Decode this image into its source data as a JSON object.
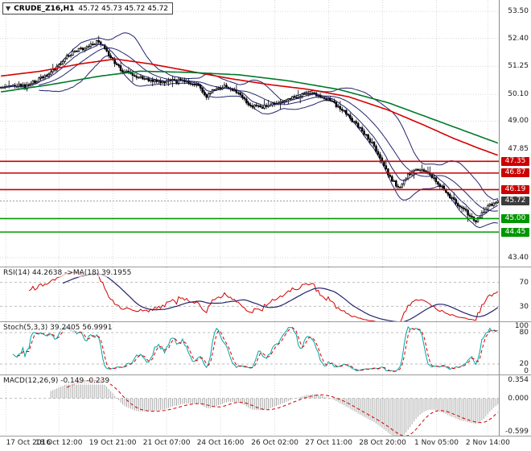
{
  "header": {
    "expander": "▼",
    "symbol": "CRUDE_Z16,H1",
    "quotes": "45.72 45.73 45.72 45.72"
  },
  "colors": {
    "grid": "#d8d8d8",
    "candle": "#000000",
    "band": "#24246e",
    "ma_red": "#d60000",
    "ma_green": "#007a28",
    "hline_red": "#cc0000",
    "hline_green": "#009900",
    "current_line": "#9a9a9a",
    "badge_resistance": "#cc0000",
    "badge_support": "#009600",
    "badge_current": "#3c3c3c",
    "level_dash": "#bdbdbd",
    "hist": "#a9a9a9"
  },
  "price_axis": {
    "plain": [
      {
        "text": "53.50",
        "value": 53.5
      },
      {
        "text": "52.40",
        "value": 52.4
      },
      {
        "text": "51.25",
        "value": 51.25
      },
      {
        "text": "50.10",
        "value": 50.1
      },
      {
        "text": "49.00",
        "value": 49.0
      },
      {
        "text": "47.85",
        "value": 47.85
      },
      {
        "text": "43.40",
        "value": 43.4
      }
    ],
    "badges": [
      {
        "text": "47.35",
        "value": 47.35,
        "type": "resistance"
      },
      {
        "text": "46.87",
        "value": 46.87,
        "type": "resistance"
      },
      {
        "text": "46.19",
        "value": 46.19,
        "type": "resistance"
      },
      {
        "text": "45.72",
        "value": 45.72,
        "type": "current"
      },
      {
        "text": "45.00",
        "value": 45.0,
        "type": "support"
      },
      {
        "text": "44.45",
        "value": 44.45,
        "type": "support"
      }
    ]
  },
  "time_axis": [
    {
      "text": "17 Oct 2016",
      "t": 0.012
    },
    {
      "text": "18 Oct 12:00",
      "t": 0.118
    },
    {
      "text": "19 Oct 21:00",
      "t": 0.226
    },
    {
      "text": "21 Oct 07:00",
      "t": 0.334
    },
    {
      "text": "24 Oct 16:00",
      "t": 0.442
    },
    {
      "text": "26 Oct 02:00",
      "t": 0.551
    },
    {
      "text": "27 Oct 11:00",
      "t": 0.659
    },
    {
      "text": "28 Oct 20:00",
      "t": 0.767
    },
    {
      "text": "1 Nov 05:00",
      "t": 0.875
    },
    {
      "text": "2 Nov 14:00",
      "t": 0.978
    }
  ],
  "chart_data": [
    {
      "id": "main",
      "type": "candlestick",
      "title": "CRUDE_Z16,H1",
      "ylim": [
        43.0,
        53.97
      ],
      "bars": 250,
      "current_price": 45.72,
      "price_anchors": [
        [
          0,
          50.35
        ],
        [
          0.02,
          50.5
        ],
        [
          0.05,
          50.45
        ],
        [
          0.07,
          50.65
        ],
        [
          0.095,
          50.9
        ],
        [
          0.115,
          51.3
        ],
        [
          0.135,
          51.7
        ],
        [
          0.155,
          51.9
        ],
        [
          0.175,
          52.05
        ],
        [
          0.196,
          52.3
        ],
        [
          0.21,
          51.95
        ],
        [
          0.225,
          51.5
        ],
        [
          0.245,
          51.05
        ],
        [
          0.27,
          50.85
        ],
        [
          0.3,
          50.65
        ],
        [
          0.33,
          50.6
        ],
        [
          0.36,
          50.7
        ],
        [
          0.38,
          50.6
        ],
        [
          0.397,
          50.5
        ],
        [
          0.412,
          50.0
        ],
        [
          0.428,
          50.3
        ],
        [
          0.45,
          50.4
        ],
        [
          0.468,
          50.3
        ],
        [
          0.482,
          50.05
        ],
        [
          0.497,
          49.7
        ],
        [
          0.52,
          49.55
        ],
        [
          0.545,
          49.7
        ],
        [
          0.57,
          49.85
        ],
        [
          0.595,
          50.0
        ],
        [
          0.618,
          50.15
        ],
        [
          0.638,
          50.05
        ],
        [
          0.658,
          49.9
        ],
        [
          0.678,
          49.6
        ],
        [
          0.697,
          49.3
        ],
        [
          0.712,
          48.9
        ],
        [
          0.727,
          48.6
        ],
        [
          0.742,
          48.25
        ],
        [
          0.757,
          47.75
        ],
        [
          0.772,
          47.15
        ],
        [
          0.786,
          46.55
        ],
        [
          0.798,
          46.2
        ],
        [
          0.812,
          46.6
        ],
        [
          0.827,
          46.95
        ],
        [
          0.842,
          47.05
        ],
        [
          0.857,
          46.85
        ],
        [
          0.872,
          46.6
        ],
        [
          0.887,
          46.3
        ],
        [
          0.902,
          45.95
        ],
        [
          0.917,
          45.65
        ],
        [
          0.932,
          45.35
        ],
        [
          0.947,
          45.05
        ],
        [
          0.956,
          44.9
        ],
        [
          0.966,
          45.15
        ],
        [
          0.977,
          45.45
        ],
        [
          0.988,
          45.6
        ],
        [
          1,
          45.72
        ]
      ],
      "overlays": {
        "bollinger": {
          "period": 20,
          "deviation": 2
        },
        "ema_fast": {
          "period": 8
        },
        "ma_red_anchors": [
          [
            0,
            50.85
          ],
          [
            0.08,
            51.05
          ],
          [
            0.16,
            51.35
          ],
          [
            0.23,
            51.55
          ],
          [
            0.3,
            51.35
          ],
          [
            0.38,
            51.05
          ],
          [
            0.46,
            50.75
          ],
          [
            0.54,
            50.5
          ],
          [
            0.62,
            50.3
          ],
          [
            0.7,
            50.0
          ],
          [
            0.78,
            49.45
          ],
          [
            0.85,
            48.85
          ],
          [
            0.91,
            48.3
          ],
          [
            0.96,
            47.9
          ],
          [
            1,
            47.6
          ]
        ],
        "ma_green_anchors": [
          [
            0,
            50.2
          ],
          [
            0.1,
            50.5
          ],
          [
            0.2,
            50.85
          ],
          [
            0.28,
            51.05
          ],
          [
            0.38,
            51.0
          ],
          [
            0.48,
            50.9
          ],
          [
            0.58,
            50.65
          ],
          [
            0.68,
            50.3
          ],
          [
            0.78,
            49.75
          ],
          [
            0.88,
            49.0
          ],
          [
            1,
            48.1
          ]
        ]
      },
      "hlines": [
        {
          "value": 47.35,
          "kind": "resistance"
        },
        {
          "value": 46.87,
          "kind": "resistance"
        },
        {
          "value": 46.19,
          "kind": "resistance"
        },
        {
          "value": 45.0,
          "kind": "support"
        },
        {
          "value": 44.45,
          "kind": "support"
        }
      ]
    },
    {
      "id": "rsi",
      "type": "line",
      "label": "RSI(14) 44.2638 ->MA(18) 39.1955",
      "params": {
        "period": 14,
        "ma_period": 18
      },
      "values": {
        "last": 44.2638,
        "ma_last": 39.1955
      },
      "levels": [
        70,
        30
      ],
      "level_labels": [
        "70",
        "30"
      ],
      "ylim": [
        5,
        95
      ]
    },
    {
      "id": "stoch",
      "type": "line",
      "label": "Stoch(5,3,3) 39.2405 56.9991",
      "params": {
        "k": 5,
        "d": 3,
        "slowing": 3
      },
      "values": {
        "k_last": 39.2405,
        "d_last": 56.9991
      },
      "levels": [
        80,
        20
      ],
      "y_ticks": [
        {
          "text": "100",
          "value": 100
        },
        {
          "text": "80",
          "value": 80
        },
        {
          "text": "20",
          "value": 20
        },
        {
          "text": "0",
          "value": 0
        }
      ],
      "ylim": [
        0,
        100
      ]
    },
    {
      "id": "macd",
      "type": "histogram",
      "label": "MACD(12,26,9) -0.149 -0.239",
      "params": {
        "fast": 12,
        "slow": 26,
        "signal": 9
      },
      "values": {
        "macd_last": -0.149,
        "signal_last": -0.239
      },
      "y_ticks": [
        {
          "text": "0.354",
          "value": 0.354
        },
        {
          "text": "0.000",
          "value": 0.0
        },
        {
          "text": "-0.599",
          "value": -0.599
        }
      ],
      "ylim": [
        -0.68,
        0.42
      ]
    }
  ]
}
